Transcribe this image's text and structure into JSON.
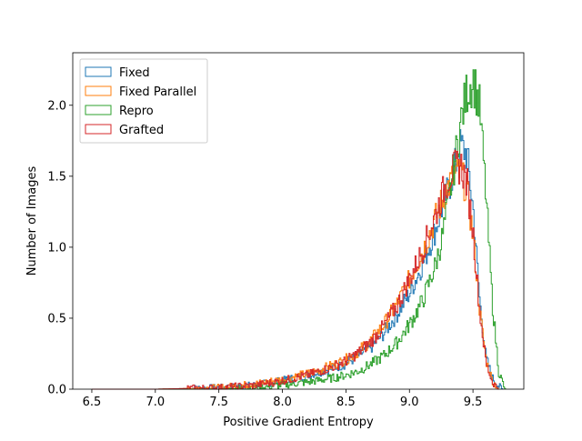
{
  "chart_data": {
    "type": "histogram",
    "title": "",
    "xlabel": "Positive Gradient Entropy",
    "ylabel": "Number of Images",
    "xlim": [
      6.35,
      9.9
    ],
    "ylim": [
      0,
      2.37
    ],
    "xticks": [
      6.5,
      7.0,
      7.5,
      8.0,
      8.5,
      9.0,
      9.5
    ],
    "xtick_labels": [
      "6.5",
      "7.0",
      "7.5",
      "8.0",
      "8.5",
      "9.0",
      "9.5"
    ],
    "yticks": [
      0.0,
      0.5,
      1.0,
      1.5,
      2.0
    ],
    "ytick_labels": [
      "0.0",
      "0.5",
      "1.0",
      "1.5",
      "2.0"
    ],
    "grid": false,
    "legend": "upper-left",
    "histtype": "step",
    "series": [
      {
        "name": "Fixed",
        "color": "#1f77b4",
        "x": [
          6.5,
          7.0,
          7.5,
          7.8,
          8.0,
          8.2,
          8.4,
          8.5,
          8.6,
          8.7,
          8.8,
          8.9,
          9.0,
          9.1,
          9.2,
          9.25,
          9.3,
          9.35,
          9.4,
          9.45,
          9.5,
          9.55,
          9.6,
          9.65,
          9.7,
          9.73
        ],
        "y": [
          0.0,
          0.0,
          0.01,
          0.03,
          0.06,
          0.1,
          0.15,
          0.18,
          0.24,
          0.3,
          0.4,
          0.53,
          0.68,
          0.88,
          1.12,
          1.27,
          1.4,
          1.55,
          1.72,
          1.65,
          1.25,
          0.62,
          0.22,
          0.08,
          0.02,
          0.0
        ]
      },
      {
        "name": "Fixed Parallel",
        "color": "#ff7f0e",
        "x": [
          6.5,
          7.0,
          7.5,
          7.8,
          8.0,
          8.2,
          8.4,
          8.5,
          8.6,
          8.7,
          8.8,
          8.9,
          9.0,
          9.1,
          9.2,
          9.25,
          9.3,
          9.35,
          9.4,
          9.45,
          9.5,
          9.55,
          9.6,
          9.65,
          9.7
        ],
        "y": [
          0.0,
          0.0,
          0.01,
          0.04,
          0.07,
          0.11,
          0.17,
          0.21,
          0.27,
          0.35,
          0.46,
          0.6,
          0.78,
          0.97,
          1.2,
          1.32,
          1.43,
          1.5,
          1.52,
          1.4,
          1.05,
          0.55,
          0.2,
          0.06,
          0.0
        ]
      },
      {
        "name": "Repro",
        "color": "#2ca02c",
        "x": [
          6.5,
          7.0,
          7.5,
          7.8,
          8.0,
          8.2,
          8.4,
          8.5,
          8.6,
          8.7,
          8.8,
          8.9,
          9.0,
          9.1,
          9.2,
          9.25,
          9.3,
          9.35,
          9.4,
          9.45,
          9.5,
          9.55,
          9.6,
          9.65,
          9.7,
          9.75
        ],
        "y": [
          0.0,
          0.0,
          0.0,
          0.01,
          0.03,
          0.05,
          0.08,
          0.1,
          0.13,
          0.18,
          0.24,
          0.33,
          0.46,
          0.62,
          0.87,
          1.05,
          1.3,
          1.58,
          1.88,
          2.1,
          2.18,
          1.98,
          1.35,
          0.6,
          0.12,
          0.0
        ]
      },
      {
        "name": "Grafted",
        "color": "#d62728",
        "x": [
          6.5,
          7.0,
          7.5,
          7.8,
          8.0,
          8.2,
          8.4,
          8.5,
          8.6,
          8.7,
          8.8,
          8.9,
          9.0,
          9.1,
          9.2,
          9.25,
          9.3,
          9.35,
          9.4,
          9.45,
          9.5,
          9.55,
          9.6,
          9.65,
          9.7
        ],
        "y": [
          0.0,
          0.0,
          0.01,
          0.03,
          0.06,
          0.1,
          0.16,
          0.2,
          0.26,
          0.34,
          0.45,
          0.59,
          0.78,
          0.98,
          1.22,
          1.36,
          1.48,
          1.55,
          1.58,
          1.45,
          1.08,
          0.55,
          0.18,
          0.05,
          0.0
        ]
      }
    ]
  }
}
